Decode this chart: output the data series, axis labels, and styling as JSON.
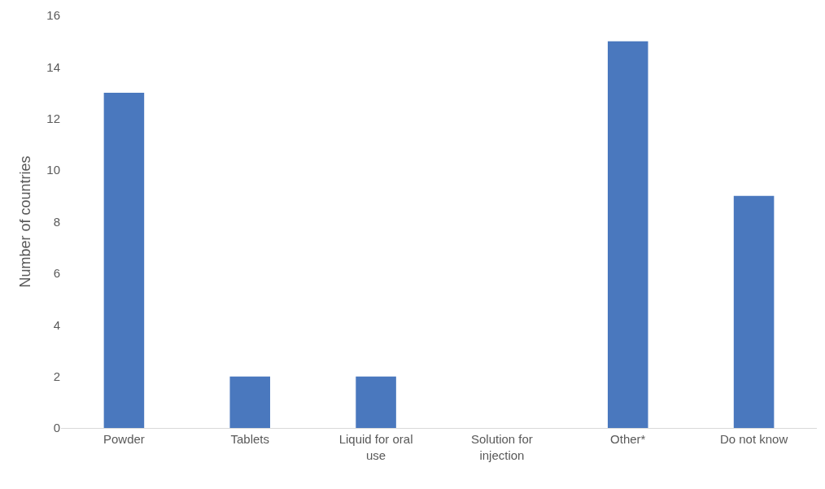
{
  "chart_data": {
    "type": "bar",
    "ylabel": "Number of countries",
    "categories": [
      "Powder",
      "Tablets",
      "Liquid for oral use",
      "Solution for injection",
      "Other*",
      "Do not know"
    ],
    "values": [
      13,
      2,
      2,
      0,
      15,
      9
    ],
    "color": "#4a78be",
    "ylim": [
      0,
      16
    ],
    "yticks": [
      0,
      2,
      4,
      6,
      8,
      10,
      12,
      14,
      16
    ],
    "grid": false
  }
}
